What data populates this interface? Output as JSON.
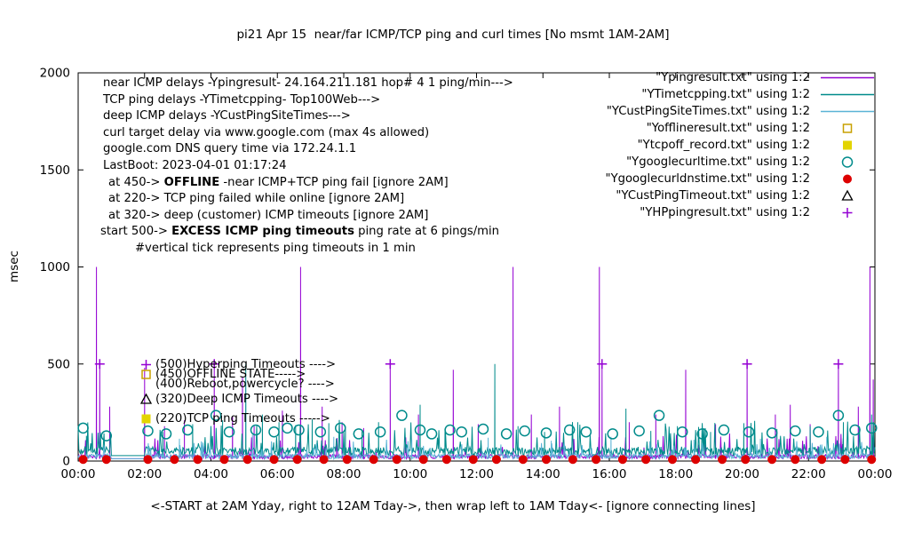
{
  "chart_data": {
    "type": "line",
    "title": "pi21 Apr 15  near/far ICMP/TCP ping and curl times [No msmt 1AM-2AM]",
    "ylabel": "msec",
    "xlabel": "<-START at 2AM Yday, right to 12AM Tday->, then wrap left to 1AM Tday<- [ignore connecting lines]",
    "ylim": [
      0,
      2000
    ],
    "xlim_hours": [
      0,
      24
    ],
    "y_ticks": [
      0,
      500,
      1000,
      1500,
      2000
    ],
    "x_ticks": [
      "00:00",
      "02:00",
      "04:00",
      "06:00",
      "08:00",
      "10:00",
      "12:00",
      "14:00",
      "16:00",
      "18:00",
      "20:00",
      "22:00",
      "00:00"
    ],
    "grid": false,
    "legend_position": "top-right-inside",
    "no_measurement_gap_hours": [
      1,
      2
    ],
    "series": [
      {
        "name": "\"Ypingresult.txt\" using 1:2",
        "kind": "line",
        "color": "#9400d3",
        "baseline_msec": 12,
        "noise_msec": 22,
        "burst_msec": 130,
        "burst_prob": 0.06,
        "seed": 42,
        "spikes": [
          [
            0.55,
            1000
          ],
          [
            0.65,
            500
          ],
          [
            0.95,
            280
          ],
          [
            2.0,
            480
          ],
          [
            2.6,
            180
          ],
          [
            3.2,
            210
          ],
          [
            4.1,
            500
          ],
          [
            4.65,
            230
          ],
          [
            4.95,
            430
          ],
          [
            5.3,
            180
          ],
          [
            6.15,
            260
          ],
          [
            6.7,
            1000
          ],
          [
            7.35,
            280
          ],
          [
            7.95,
            200
          ],
          [
            8.6,
            170
          ],
          [
            9.4,
            500
          ],
          [
            10.25,
            240
          ],
          [
            11.3,
            470
          ],
          [
            12.05,
            190
          ],
          [
            13.1,
            1000
          ],
          [
            13.65,
            240
          ],
          [
            14.5,
            280
          ],
          [
            15.7,
            1000
          ],
          [
            15.78,
            500
          ],
          [
            16.6,
            200
          ],
          [
            17.4,
            240
          ],
          [
            18.3,
            470
          ],
          [
            19.2,
            190
          ],
          [
            20.15,
            500
          ],
          [
            21.0,
            240
          ],
          [
            21.45,
            290
          ],
          [
            22.05,
            190
          ],
          [
            22.9,
            500
          ],
          [
            23.5,
            280
          ],
          [
            23.85,
            1000
          ],
          [
            23.95,
            420
          ]
        ]
      },
      {
        "name": "\"YTimetcpping.txt\" using 1:2",
        "kind": "line",
        "color": "#008b8b",
        "baseline_msec": 28,
        "noise_msec": 45,
        "burst_msec": 150,
        "burst_prob": 0.12,
        "seed": 7,
        "spikes": [
          [
            0.25,
            130
          ],
          [
            2.55,
            150
          ],
          [
            3.45,
            190
          ],
          [
            4.35,
            210
          ],
          [
            5.05,
            500
          ],
          [
            5.55,
            240
          ],
          [
            6.05,
            200
          ],
          [
            6.55,
            185
          ],
          [
            7.05,
            215
          ],
          [
            7.55,
            195
          ],
          [
            8.05,
            180
          ],
          [
            8.55,
            155
          ],
          [
            9.05,
            200
          ],
          [
            10.3,
            290
          ],
          [
            11.05,
            160
          ],
          [
            12.55,
            500
          ],
          [
            13.25,
            180
          ],
          [
            14.05,
            150
          ],
          [
            15.05,
            200
          ],
          [
            16.5,
            270
          ],
          [
            17.25,
            155
          ],
          [
            18.05,
            180
          ],
          [
            19.05,
            150
          ],
          [
            20.05,
            195
          ],
          [
            21.05,
            165
          ],
          [
            22.05,
            180
          ],
          [
            23.05,
            200
          ],
          [
            23.9,
            240
          ]
        ]
      },
      {
        "name": "\"YCustPingSiteTimes.txt\" using 1:2",
        "kind": "line",
        "color": "#5ab4d6",
        "baseline_msec": 12,
        "noise_msec": 26,
        "burst_msec": 85,
        "burst_prob": 0.06,
        "seed": 99,
        "spikes": [
          [
            3.05,
            115
          ],
          [
            5.25,
            135
          ],
          [
            7.7,
            125
          ],
          [
            10.05,
            110
          ],
          [
            12.35,
            120
          ],
          [
            14.25,
            105
          ],
          [
            16.05,
            125
          ],
          [
            18.55,
            110
          ],
          [
            20.55,
            115
          ],
          [
            22.55,
            125
          ]
        ]
      },
      {
        "name": "\"Yofflineresult.txt\" using 1:2",
        "kind": "points",
        "marker": "open-square",
        "color": "#c8a000",
        "points": []
      },
      {
        "name": "\"Ytcpoff_record.txt\" using 1:2",
        "kind": "points",
        "marker": "filled-square",
        "color": "#e3d400",
        "points": []
      },
      {
        "name": "\"Ygooglecurltime.txt\" using 1:2",
        "kind": "points",
        "marker": "open-circle",
        "color": "#008b8b",
        "points": [
          [
            0.15,
            170
          ],
          [
            0.85,
            130
          ],
          [
            2.1,
            155
          ],
          [
            2.65,
            140
          ],
          [
            3.3,
            160
          ],
          [
            4.15,
            235
          ],
          [
            4.55,
            150
          ],
          [
            5.35,
            160
          ],
          [
            5.9,
            150
          ],
          [
            6.3,
            170
          ],
          [
            6.65,
            160
          ],
          [
            7.3,
            150
          ],
          [
            7.9,
            170
          ],
          [
            8.45,
            140
          ],
          [
            9.1,
            150
          ],
          [
            9.75,
            235
          ],
          [
            10.3,
            160
          ],
          [
            10.65,
            140
          ],
          [
            11.2,
            160
          ],
          [
            11.55,
            150
          ],
          [
            12.2,
            165
          ],
          [
            12.9,
            140
          ],
          [
            13.45,
            155
          ],
          [
            14.1,
            145
          ],
          [
            14.8,
            160
          ],
          [
            15.3,
            150
          ],
          [
            16.1,
            140
          ],
          [
            16.9,
            155
          ],
          [
            17.5,
            235
          ],
          [
            18.2,
            150
          ],
          [
            18.8,
            140
          ],
          [
            19.45,
            160
          ],
          [
            20.2,
            150
          ],
          [
            20.9,
            145
          ],
          [
            21.6,
            155
          ],
          [
            22.3,
            150
          ],
          [
            22.9,
            235
          ],
          [
            23.4,
            160
          ],
          [
            23.9,
            170
          ]
        ]
      },
      {
        "name": "\"Ygooglecurldnstime.txt\" using 1:2",
        "kind": "points",
        "marker": "filled-circle",
        "color": "#dd0000",
        "points": [
          [
            0.15,
            8
          ],
          [
            0.85,
            8
          ],
          [
            2.1,
            8
          ],
          [
            2.9,
            8
          ],
          [
            3.6,
            8
          ],
          [
            4.4,
            8
          ],
          [
            5.1,
            8
          ],
          [
            5.9,
            8
          ],
          [
            6.6,
            8
          ],
          [
            7.4,
            8
          ],
          [
            8.1,
            8
          ],
          [
            8.9,
            8
          ],
          [
            9.6,
            8
          ],
          [
            10.4,
            8
          ],
          [
            11.1,
            8
          ],
          [
            11.9,
            8
          ],
          [
            12.6,
            8
          ],
          [
            13.4,
            8
          ],
          [
            14.1,
            8
          ],
          [
            14.9,
            8
          ],
          [
            15.6,
            8
          ],
          [
            16.4,
            8
          ],
          [
            17.1,
            8
          ],
          [
            17.9,
            8
          ],
          [
            18.6,
            8
          ],
          [
            19.4,
            8
          ],
          [
            20.1,
            8
          ],
          [
            20.9,
            8
          ],
          [
            21.6,
            8
          ],
          [
            22.4,
            8
          ],
          [
            23.1,
            8
          ],
          [
            23.9,
            8
          ]
        ]
      },
      {
        "name": "\"YCustPingTimeout.txt\" using 1:2",
        "kind": "points",
        "marker": "open-triangle",
        "color": "#000000",
        "points": []
      },
      {
        "name": "\"YHPpingresult.txt\" using 1:2",
        "kind": "points",
        "marker": "plus",
        "color": "#9400d3",
        "points": [
          [
            0.65,
            500
          ],
          [
            4.1,
            500
          ],
          [
            9.4,
            500
          ],
          [
            15.78,
            500
          ],
          [
            20.15,
            500
          ],
          [
            22.9,
            500
          ]
        ]
      }
    ],
    "annotations": {
      "info_lines": [
        [
          {
            "t": "near ICMP delays -Ypingresult- 24.164.211.181 hop# 4 1 ping/min--->"
          }
        ],
        [
          {
            "t": "TCP ping delays -YTimetcpping- Top100Web--->"
          }
        ],
        [
          {
            "t": "deep ICMP delays -YCustPingSiteTimes--->"
          }
        ],
        [
          {
            "t": "curl target delay via www.google.com (max 4s allowed)"
          }
        ],
        [
          {
            "t": "google.com DNS query time via 172.24.1.1"
          }
        ],
        [
          {
            "t": "LastBoot: 2023-04-01 01:17:24"
          }
        ],
        [
          {
            "t": "at 450-> "
          },
          {
            "t": "OFFLINE",
            "b": true
          },
          {
            "t": " -near ICMP+TCP ping fail [ignore 2AM]"
          }
        ],
        [
          {
            "t": "at 220-> TCP ping failed while online [ignore 2AM]"
          }
        ],
        [
          {
            "t": "at 320-> deep (customer) ICMP timeouts [ignore 2AM]"
          }
        ],
        [
          {
            "t": "start 500-> "
          },
          {
            "t": "EXCESS ICMP ping timeouts",
            "b": true
          },
          {
            "t": " ping rate at 6 pings/min"
          }
        ],
        [
          {
            "t": "#vertical tick represents ping timeouts in 1 min"
          }
        ]
      ],
      "level_labels": [
        {
          "value": 500,
          "marker": "plus",
          "color": "#9400d3",
          "text": "(500)Hyperping Timeouts ---->"
        },
        {
          "value": 450,
          "marker": "open-square",
          "color": "#c8a000",
          "text": "(450)OFFLINE STATE----->"
        },
        {
          "value": 400,
          "marker": "none",
          "color": "#000000",
          "text": "(400)Reboot,powercycle? ---->"
        },
        {
          "value": 320,
          "marker": "open-triangle",
          "color": "#000000",
          "text": "(320)Deep ICMP Timeouts ---->"
        },
        {
          "value": 220,
          "marker": "filled-square",
          "color": "#e3d400",
          "text": "(220)TCP ping Timeouts ----->"
        }
      ]
    }
  }
}
